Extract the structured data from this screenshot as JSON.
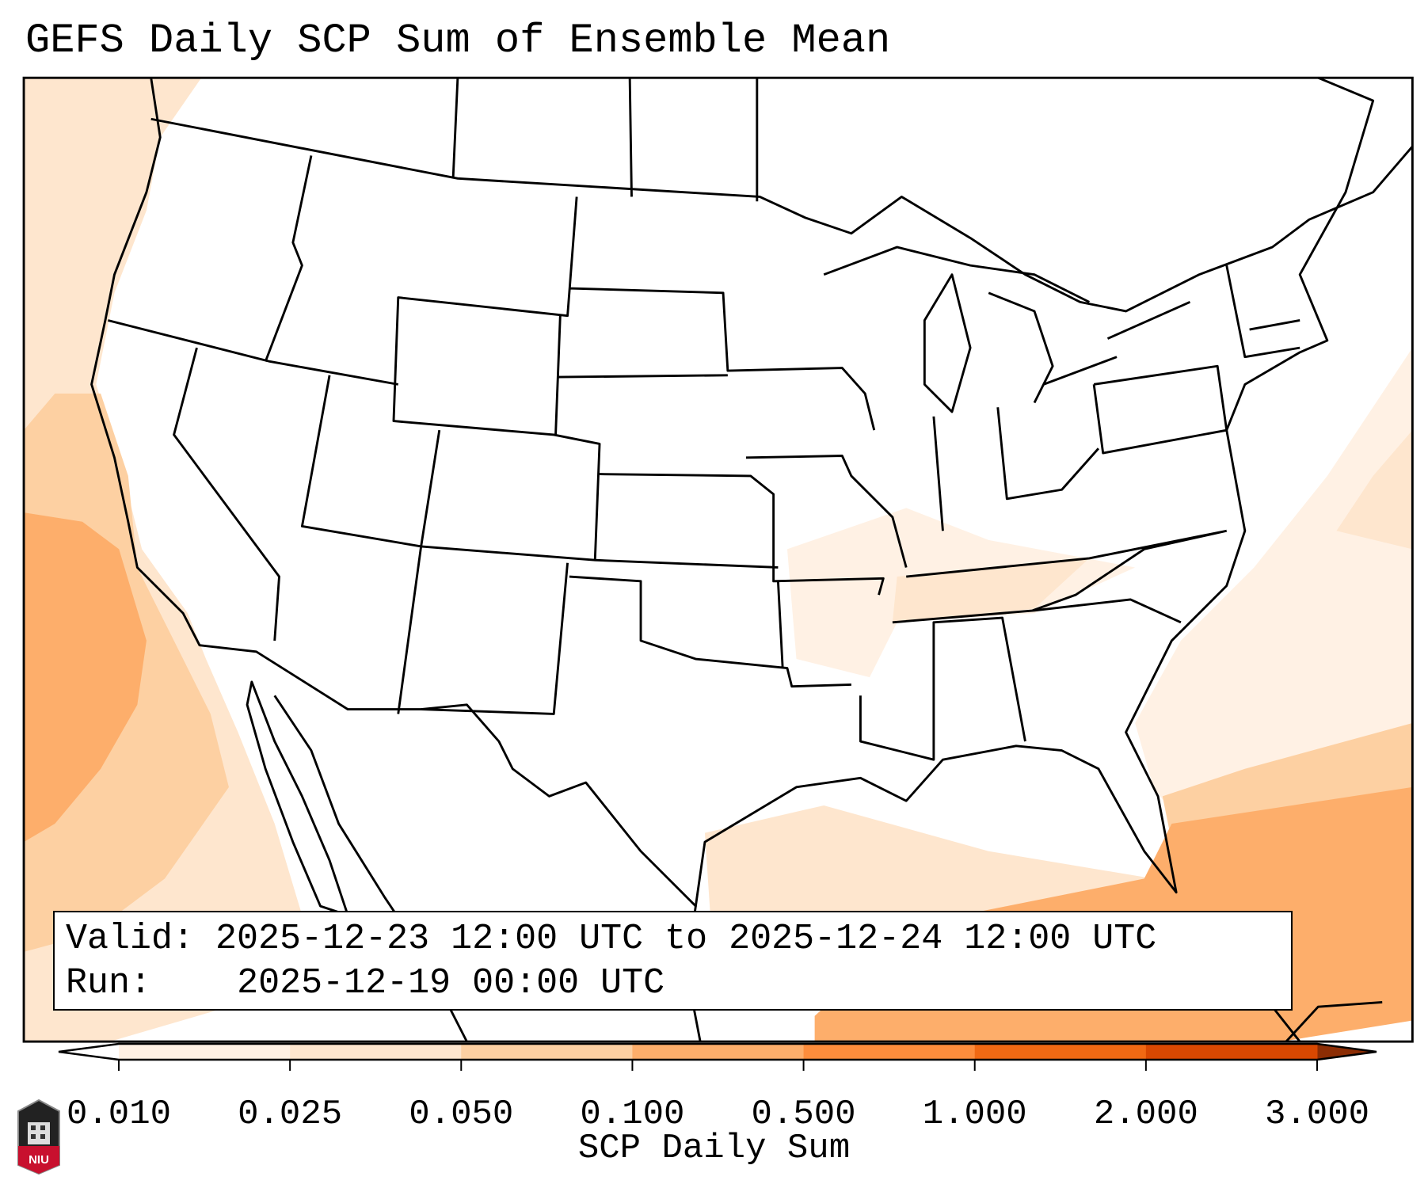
{
  "title": "GEFS Daily SCP Sum of Ensemble Mean",
  "info": {
    "valid_label": "Valid:",
    "valid_value": "2025-12-23 12:00 UTC to 2025-12-24 12:00 UTC",
    "run_label": "Run:",
    "run_value": "2025-12-19 00:00 UTC"
  },
  "colorbar": {
    "label": "SCP Daily Sum",
    "ticks": [
      "0.010",
      "0.025",
      "0.050",
      "0.100",
      "0.500",
      "1.000",
      "2.000",
      "3.000"
    ],
    "colors": [
      "#fff1e4",
      "#fee6ce",
      "#fdd0a2",
      "#fdae6b",
      "#fd8d3c",
      "#f16913",
      "#d94801"
    ],
    "under_color": "#ffffff",
    "over_color": "#8c2d04"
  },
  "logo": {
    "text": "NIU"
  }
}
